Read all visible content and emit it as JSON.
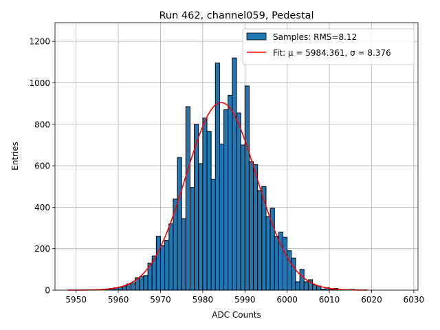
{
  "chart_data": {
    "type": "bar",
    "title": "Run 462, channel059, Pedestal",
    "xlabel": "ADC Counts",
    "ylabel": "Entries",
    "xlim": [
      5945,
      6031
    ],
    "ylim": [
      0,
      1290
    ],
    "xticks": [
      5950,
      5960,
      5970,
      5980,
      5990,
      6000,
      6010,
      6020,
      6030
    ],
    "yticks": [
      0,
      200,
      400,
      600,
      800,
      1000,
      1200
    ],
    "grid": true,
    "legend_position": "top-right",
    "bin_width": 1,
    "histogram": {
      "name": "Samples: RMS=8.12",
      "color": "#1f77b4",
      "bins": [
        [
          5957,
          5
        ],
        [
          5958,
          8
        ],
        [
          5959,
          12
        ],
        [
          5960,
          15
        ],
        [
          5961,
          20
        ],
        [
          5962,
          30
        ],
        [
          5963,
          35
        ],
        [
          5964,
          60
        ],
        [
          5965,
          65
        ],
        [
          5966,
          70
        ],
        [
          5967,
          130
        ],
        [
          5968,
          165
        ],
        [
          5969,
          260
        ],
        [
          5970,
          215
        ],
        [
          5971,
          240
        ],
        [
          5972,
          320
        ],
        [
          5973,
          440
        ],
        [
          5974,
          640
        ],
        [
          5975,
          345
        ],
        [
          5976,
          885
        ],
        [
          5977,
          495
        ],
        [
          5978,
          800
        ],
        [
          5979,
          610
        ],
        [
          5980,
          830
        ],
        [
          5981,
          765
        ],
        [
          5982,
          535
        ],
        [
          5983,
          1095
        ],
        [
          5984,
          705
        ],
        [
          5985,
          870
        ],
        [
          5986,
          940
        ],
        [
          5987,
          1120
        ],
        [
          5988,
          855
        ],
        [
          5989,
          700
        ],
        [
          5990,
          985
        ],
        [
          5991,
          620
        ],
        [
          5992,
          605
        ],
        [
          5993,
          480
        ],
        [
          5994,
          500
        ],
        [
          5995,
          355
        ],
        [
          5996,
          395
        ],
        [
          5997,
          260
        ],
        [
          5998,
          280
        ],
        [
          5999,
          255
        ],
        [
          6000,
          190
        ],
        [
          6001,
          155
        ],
        [
          6002,
          40
        ],
        [
          6003,
          100
        ],
        [
          6004,
          40
        ],
        [
          6005,
          50
        ],
        [
          6006,
          25
        ],
        [
          6007,
          20
        ],
        [
          6008,
          5
        ],
        [
          6009,
          12
        ],
        [
          6010,
          5
        ],
        [
          6011,
          8
        ],
        [
          6012,
          3
        ],
        [
          6013,
          2
        ],
        [
          6014,
          2
        ],
        [
          6015,
          3
        ]
      ]
    },
    "fit": {
      "name": "Fit: μ = 5984.361, σ = 8.376",
      "color": "#ff0000",
      "mu": 5984.361,
      "sigma": 8.376,
      "amplitude": 905,
      "x_range": [
        5948,
        6019
      ]
    }
  }
}
